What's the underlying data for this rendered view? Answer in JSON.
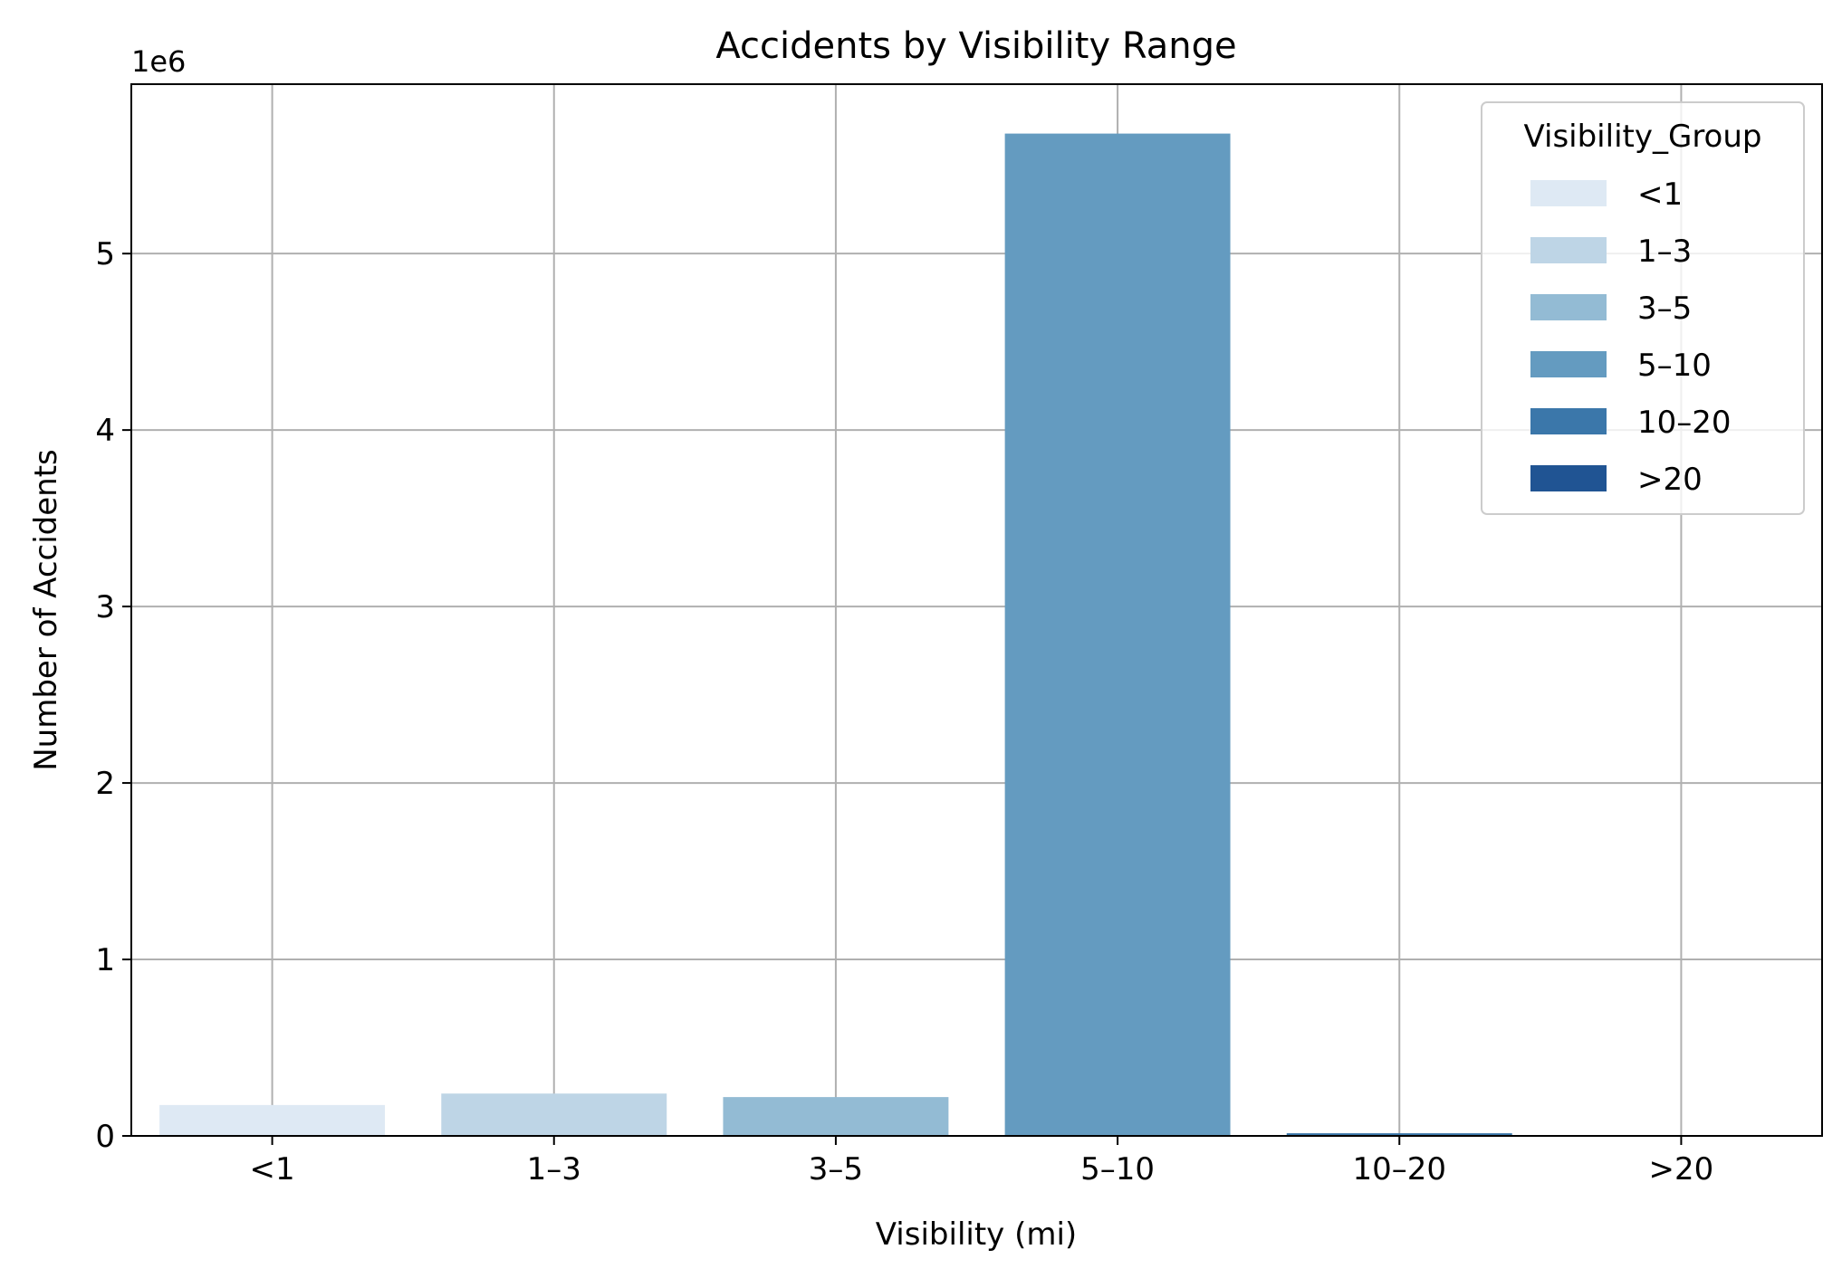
{
  "chart_data": {
    "type": "bar",
    "title": "Accidents by Visibility Range",
    "xlabel": "Visibility (mi)",
    "ylabel": "Number of Accidents",
    "y_offset_label": "1e6",
    "categories": [
      "<1",
      "1–3",
      "3–5",
      "5–10",
      "10–20",
      ">20"
    ],
    "values": [
      175000,
      240000,
      220000,
      5680000,
      15000,
      1000
    ],
    "colors": [
      "#dee9f4",
      "#bed5e6",
      "#93bbd4",
      "#649bc0",
      "#3b77aa",
      "#205493"
    ],
    "ylim": [
      0,
      5960000
    ],
    "yticks": [
      0,
      1000000,
      2000000,
      3000000,
      4000000,
      5000000
    ],
    "ytick_labels": [
      "0",
      "1",
      "2",
      "3",
      "4",
      "5"
    ],
    "grid": true,
    "legend": {
      "title": "Visibility_Group",
      "placement": "top-right",
      "entries": [
        "<1",
        "1–3",
        "3–5",
        "5–10",
        "10–20",
        ">20"
      ]
    }
  }
}
